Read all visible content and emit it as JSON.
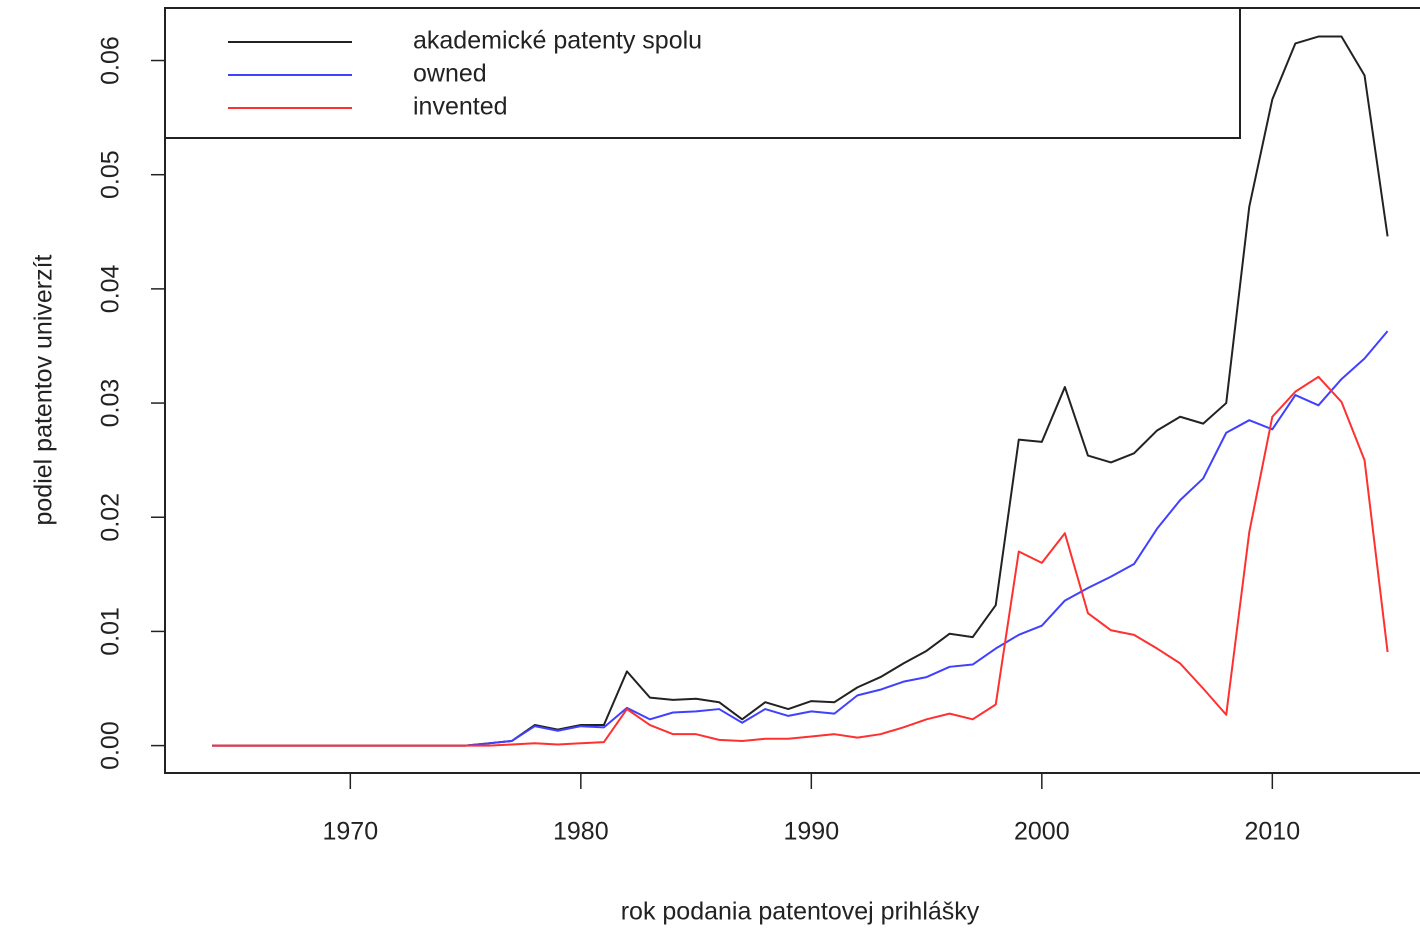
{
  "chart_data": {
    "type": "line",
    "xlabel": "rok podania patentovej prihlášky",
    "ylabel": "podiel patentov univerzít",
    "x": [
      1964,
      1965,
      1966,
      1967,
      1968,
      1969,
      1970,
      1971,
      1972,
      1973,
      1974,
      1975,
      1976,
      1977,
      1978,
      1979,
      1980,
      1981,
      1982,
      1983,
      1984,
      1985,
      1986,
      1987,
      1988,
      1989,
      1990,
      1991,
      1992,
      1993,
      1994,
      1995,
      1996,
      1997,
      1998,
      1999,
      2000,
      2001,
      2002,
      2003,
      2004,
      2005,
      2006,
      2007,
      2008,
      2009,
      2010,
      2011,
      2012,
      2013,
      2014,
      2015
    ],
    "series": [
      {
        "name": "akademické patenty spolu",
        "color": "#222222",
        "values": [
          0,
          0,
          0,
          0,
          0,
          0,
          0,
          0,
          0,
          0,
          0,
          0,
          0.0002,
          0.0004,
          0.0018,
          0.0014,
          0.0018,
          0.0018,
          0.0065,
          0.0042,
          0.004,
          0.0041,
          0.0038,
          0.0023,
          0.0038,
          0.0032,
          0.0039,
          0.0038,
          0.0051,
          0.006,
          0.0072,
          0.0083,
          0.0098,
          0.0095,
          0.0123,
          0.0268,
          0.0266,
          0.0314,
          0.0254,
          0.0248,
          0.0256,
          0.0276,
          0.0288,
          0.0282,
          0.03,
          0.0472,
          0.0566,
          0.0615,
          0.0621,
          0.0621,
          0.0587,
          0.0446
        ]
      },
      {
        "name": "owned",
        "color": "#4040ff",
        "values": [
          0,
          0,
          0,
          0,
          0,
          0,
          0,
          0,
          0,
          0,
          0,
          0,
          0.0002,
          0.0004,
          0.0017,
          0.0013,
          0.0017,
          0.0016,
          0.0033,
          0.0023,
          0.0029,
          0.003,
          0.0032,
          0.002,
          0.0032,
          0.0026,
          0.003,
          0.0028,
          0.0044,
          0.0049,
          0.0056,
          0.006,
          0.0069,
          0.0071,
          0.0085,
          0.0097,
          0.0105,
          0.0127,
          0.0138,
          0.0148,
          0.0159,
          0.019,
          0.0215,
          0.0234,
          0.0274,
          0.0285,
          0.0277,
          0.0307,
          0.0298,
          0.0321,
          0.0339,
          0.0363
        ]
      },
      {
        "name": "invented",
        "color": "#ff3030",
        "values": [
          0,
          0,
          0,
          0,
          0,
          0,
          0,
          0,
          0,
          0,
          0,
          0,
          0,
          0.0001,
          0.0002,
          0.0001,
          0.0002,
          0.0003,
          0.0032,
          0.0018,
          0.001,
          0.001,
          0.0005,
          0.0004,
          0.0006,
          0.0006,
          0.0008,
          0.001,
          0.0007,
          0.001,
          0.0016,
          0.0023,
          0.0028,
          0.0023,
          0.0036,
          0.017,
          0.016,
          0.0186,
          0.0116,
          0.0101,
          0.0097,
          0.0085,
          0.0072,
          0.005,
          0.0027,
          0.0187,
          0.0288,
          0.031,
          0.0323,
          0.0301,
          0.025,
          0.0082
        ]
      }
    ],
    "xlim": [
      1961.96,
      2017.04
    ],
    "xticks": [
      1970,
      1980,
      1990,
      2000,
      2010
    ],
    "ylim": [
      -0.0024,
      0.0646
    ],
    "yticks": [
      {
        "value": 0,
        "label": "0.00"
      },
      0.01,
      0.02,
      0.03,
      0.04,
      0.05,
      0.06
    ],
    "legend": "topleft",
    "grid": false
  }
}
